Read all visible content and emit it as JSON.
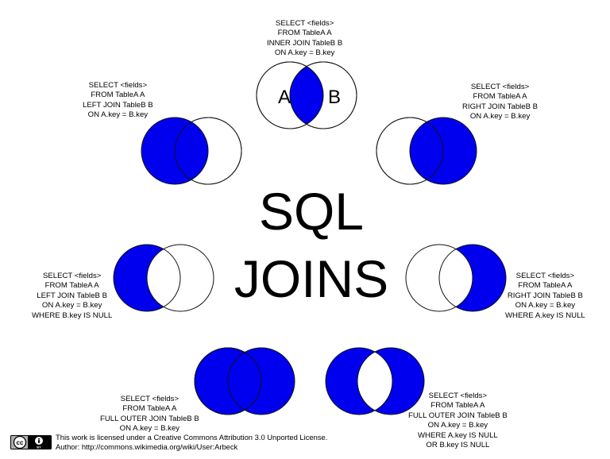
{
  "title": {
    "line1": "SQL",
    "line2": "JOINS"
  },
  "colors": {
    "fill": "#0000ee",
    "stroke": "#111111",
    "background": "#ffffff"
  },
  "circle_labels": {
    "a": "A",
    "b": "B"
  },
  "joins": {
    "inner": [
      "SELECT <fields>",
      "FROM TableA  A",
      "INNER JOIN TableB  B",
      "ON A.key = B.key"
    ],
    "left": [
      "SELECT <fields>",
      "FROM TableA  A",
      "LEFT JOIN TableB  B",
      "ON A.key = B.key"
    ],
    "right": [
      "SELECT <fields>",
      "FROM TableA  A",
      "RIGHT JOIN TableB  B",
      "ON A.key = B.key"
    ],
    "left_excl": [
      "SELECT <fields>",
      "FROM TableA  A",
      "LEFT JOIN TableB  B",
      "ON A.key = B.key",
      "WHERE B.key IS NULL"
    ],
    "right_excl": [
      "SELECT <fields>",
      "FROM TableA  A",
      "RIGHT JOIN TableB  B",
      "ON A.key = B.key",
      "WHERE A.key IS NULL"
    ],
    "full": [
      "SELECT <fields>",
      "FROM TableA  A",
      "FULL OUTER JOIN TableB  B",
      "ON A.key = B.key"
    ],
    "full_excl": [
      "SELECT <fields>",
      "FROM TableA  A",
      "FULL OUTER JOIN TableB  B",
      "ON A.key = B.key",
      "WHERE A.key IS NULL",
      "OR B.key IS NULL"
    ]
  },
  "license": {
    "line1": "This work is licensed under a Creative Commons Attribution 3.0 Unported License.",
    "line2": "Author: http://commons.wikimedia.org/wiki/User:Arbeck"
  },
  "badge": {
    "cc": "cc",
    "by": "BY"
  }
}
